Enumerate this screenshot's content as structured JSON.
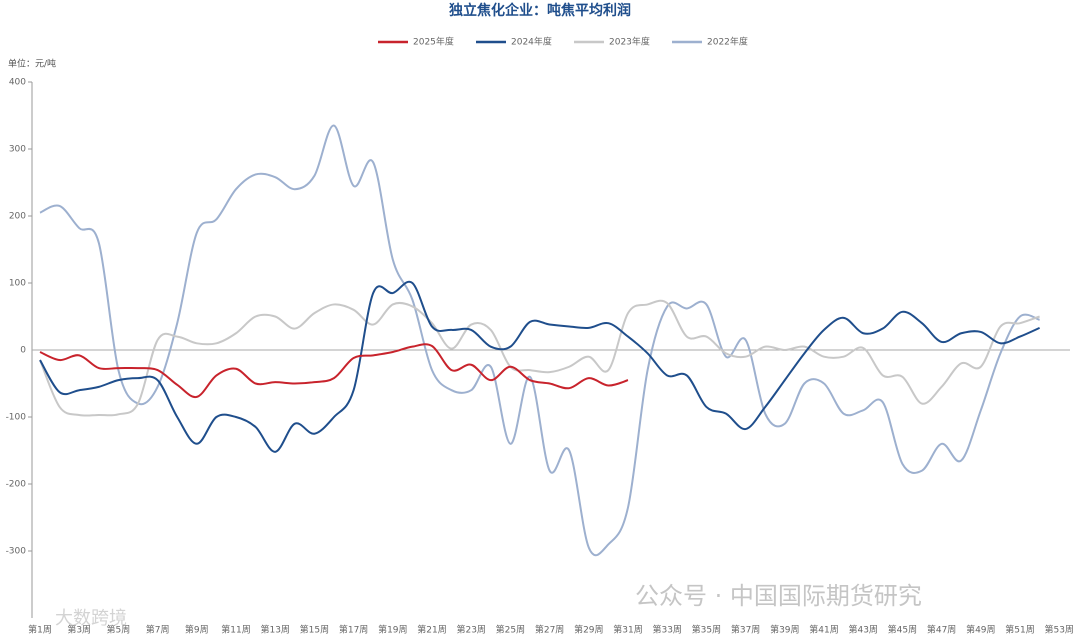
{
  "chart_data": {
    "type": "line",
    "title": "独立焦化企业：吨焦平均利润",
    "unit_label": "单位：元/吨",
    "watermarks": [
      "公众号 · 中国国际期货研究",
      "大数跨境"
    ],
    "categories": [
      "第1周",
      null,
      "第3周",
      null,
      "第5周",
      null,
      "第7周",
      null,
      "第9周",
      null,
      "第11周",
      null,
      "第13周",
      null,
      "第15周",
      null,
      "第17周",
      null,
      "第19周",
      null,
      "第21周",
      null,
      "第23周",
      null,
      "第25周",
      null,
      "第27周",
      null,
      "第29周",
      null,
      "第31周",
      null,
      "第33周",
      null,
      "第35周",
      null,
      "第37周",
      null,
      "第39周",
      null,
      "第41周",
      null,
      "第43周",
      null,
      "第45周",
      null,
      "第47周",
      null,
      "第49周",
      null,
      "第51周",
      null,
      "第53周"
    ],
    "ylim": [
      -400,
      400
    ],
    "yticks": [
      -300,
      -200,
      -100,
      0,
      100,
      200,
      300,
      400
    ],
    "series": [
      {
        "name": "2025年度",
        "color": "#c8232c",
        "values": [
          -3,
          -15,
          -8,
          -27,
          -27,
          -27,
          -30,
          -52,
          -70,
          -38,
          -28,
          -50,
          -48,
          -50,
          -48,
          -42,
          -12,
          -8,
          -3,
          5,
          6,
          -30,
          -22,
          -45,
          -25,
          -45,
          -50,
          -57,
          -42,
          -53,
          -45,
          null,
          null,
          null,
          null,
          null,
          null,
          null,
          null,
          null,
          null,
          null,
          null,
          null,
          null,
          null,
          null,
          null,
          null,
          null,
          null,
          null,
          null
        ]
      },
      {
        "name": "2024年度",
        "color": "#1f4e8c",
        "values": [
          -15,
          -63,
          -60,
          -55,
          -45,
          -42,
          -45,
          -100,
          -140,
          -100,
          -100,
          -115,
          -152,
          -110,
          -125,
          -100,
          -60,
          85,
          85,
          100,
          35,
          30,
          30,
          5,
          5,
          42,
          38,
          35,
          33,
          40,
          20,
          -5,
          -38,
          -38,
          -85,
          -95,
          -118,
          -85,
          -45,
          -5,
          30,
          48,
          25,
          32,
          57,
          40,
          12,
          25,
          27,
          10,
          20,
          33,
          null
        ]
      },
      {
        "name": "2023年度",
        "color": "#c8c8c8",
        "values": [
          -15,
          -85,
          -97,
          -97,
          -96,
          -80,
          15,
          20,
          10,
          10,
          25,
          50,
          50,
          32,
          55,
          68,
          60,
          38,
          68,
          65,
          40,
          2,
          38,
          30,
          -25,
          -30,
          -33,
          -25,
          -10,
          -30,
          55,
          68,
          70,
          20,
          20,
          -5,
          -10,
          5,
          0,
          5,
          -10,
          -10,
          3,
          -38,
          -40,
          -80,
          -55,
          -20,
          -25,
          35,
          40,
          50,
          null
        ]
      },
      {
        "name": "2022年度",
        "color": "#9db0cf",
        "values": [
          205,
          215,
          182,
          160,
          -30,
          -80,
          -55,
          40,
          175,
          195,
          240,
          262,
          258,
          240,
          260,
          335,
          245,
          280,
          135,
          75,
          -30,
          -60,
          -60,
          -25,
          -140,
          -40,
          -180,
          -150,
          -295,
          -290,
          -235,
          -30,
          65,
          62,
          68,
          -10,
          15,
          -95,
          -110,
          -50,
          -50,
          -95,
          -90,
          -78,
          -170,
          -180,
          -140,
          -165,
          -90,
          -5,
          50,
          45,
          null
        ]
      }
    ]
  }
}
